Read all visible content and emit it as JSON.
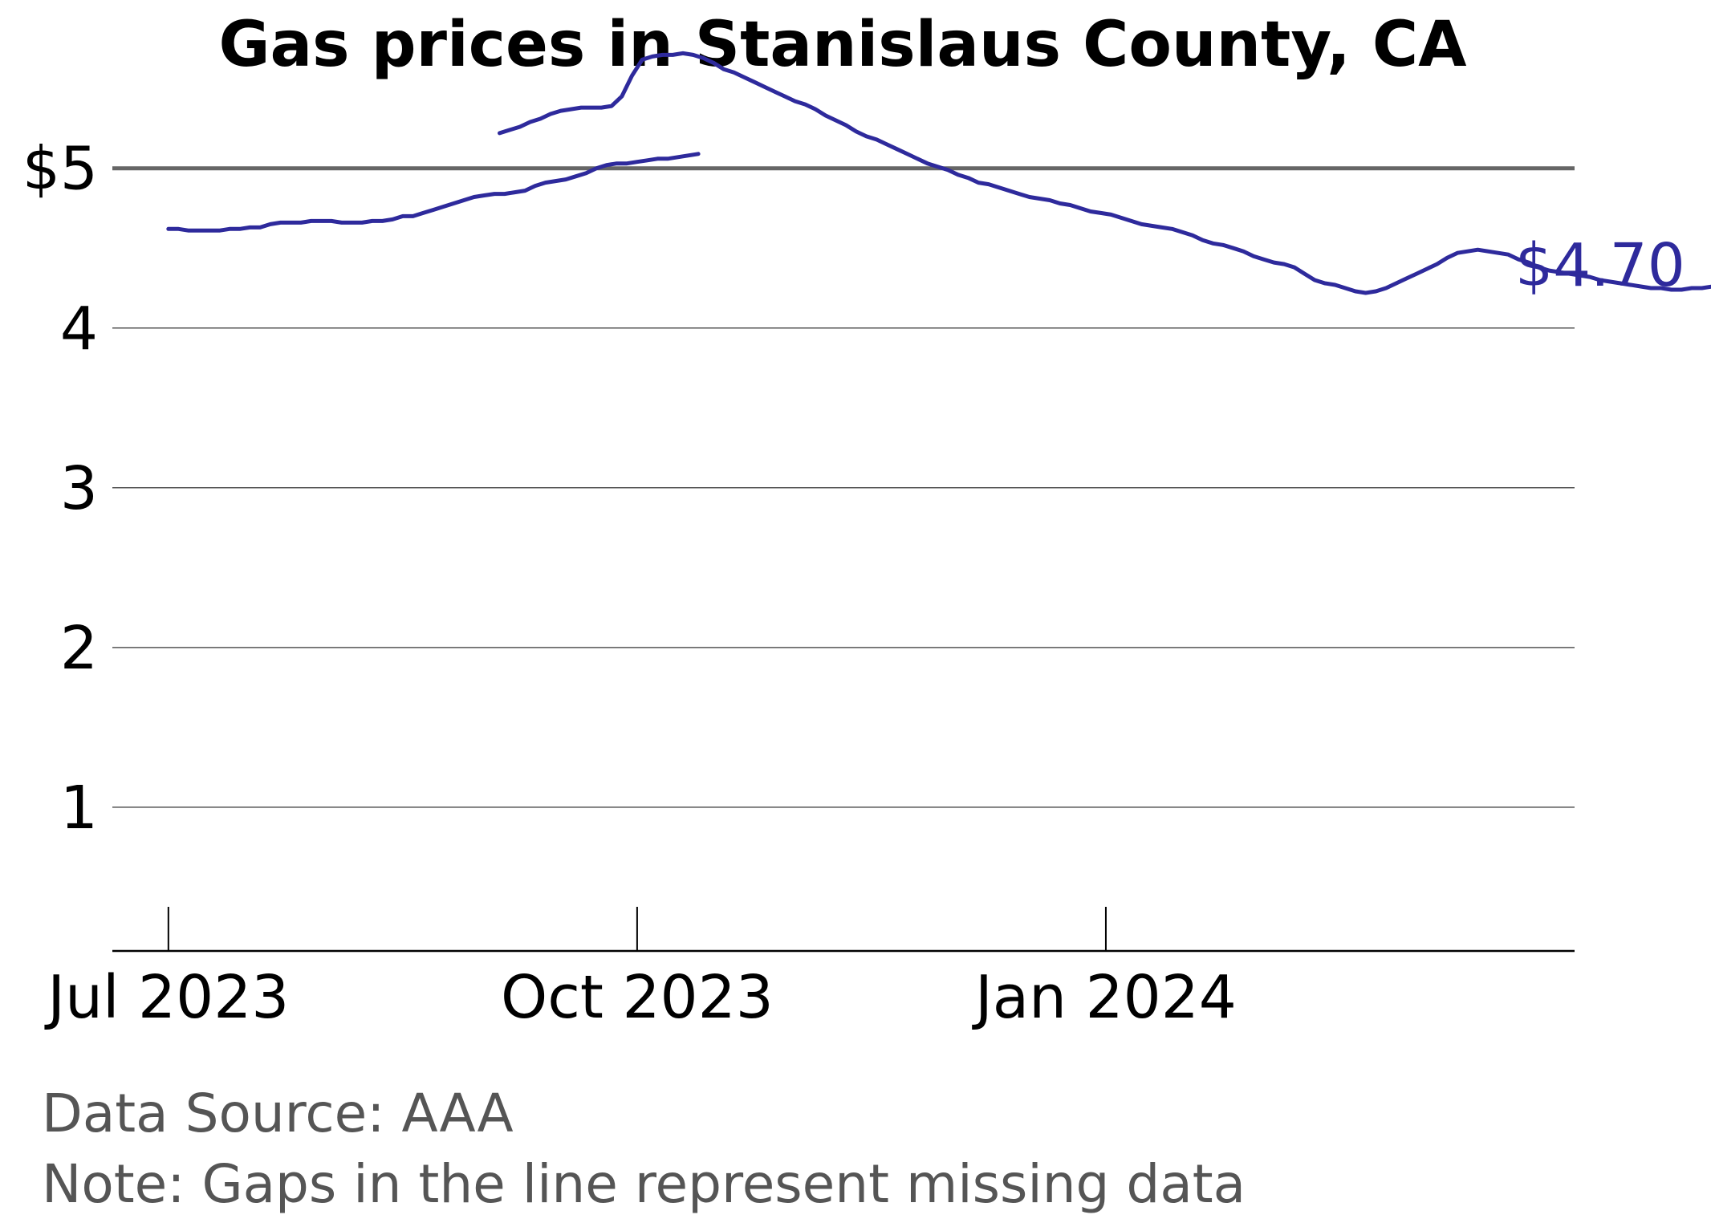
{
  "chart_data": {
    "type": "line",
    "title": "Gas prices in Stanislaus County, CA",
    "xlabel": "",
    "ylabel": "",
    "x_range": [
      "2023-06-20",
      "2024-04-02"
    ],
    "ylim": [
      0.1,
      5.3
    ],
    "y_ticks": [
      {
        "value": 1,
        "label": "1"
      },
      {
        "value": 2,
        "label": "2"
      },
      {
        "value": 3,
        "label": "3"
      },
      {
        "value": 4,
        "label": "4"
      },
      {
        "value": 5,
        "label": "$5"
      }
    ],
    "x_ticks": [
      {
        "date": "2023-07-01",
        "label": "Jul 2023"
      },
      {
        "date": "2023-10-01",
        "label": "Oct 2023"
      },
      {
        "date": "2024-01-01",
        "label": "Jan 2024"
      }
    ],
    "grid": "horizontal",
    "reference_line": {
      "value": 5
    },
    "end_label": "$4.70",
    "colors": {
      "line": "#2e2a9c",
      "reference": "#666666",
      "grid": "#555555",
      "axis": "#000000"
    },
    "series": [
      {
        "segments": [
          {
            "start": "2023-07-01",
            "values": [
              4.62,
              4.62,
              4.61,
              4.61,
              4.61,
              4.61,
              4.62,
              4.62,
              4.63,
              4.63,
              4.65,
              4.66,
              4.66,
              4.66,
              4.67,
              4.67,
              4.67,
              4.66,
              4.66,
              4.66,
              4.67,
              4.67,
              4.68,
              4.7,
              4.7,
              4.72,
              4.74,
              4.76,
              4.78,
              4.8,
              4.82,
              4.83,
              4.84,
              4.84,
              4.85,
              4.86,
              4.89,
              4.91,
              4.92,
              4.93,
              4.95,
              4.97,
              5.0,
              5.02,
              5.03,
              5.03,
              5.04,
              5.05,
              5.06,
              5.06,
              5.07,
              5.08,
              5.09
            ]
          },
          {
            "start": "2023-09-04",
            "values": [
              5.22,
              5.24,
              5.26,
              5.29,
              5.31,
              5.34,
              5.36,
              5.37,
              5.38,
              5.38,
              5.38,
              5.39,
              5.45,
              5.58,
              5.68,
              5.7,
              5.71,
              5.71,
              5.72,
              5.71,
              5.69,
              5.66,
              5.62,
              5.6,
              5.57,
              5.54,
              5.51,
              5.48,
              5.45,
              5.42,
              5.4,
              5.37,
              5.33,
              5.3,
              5.27,
              5.23,
              5.2,
              5.18,
              5.15,
              5.12,
              5.09,
              5.06,
              5.03,
              5.01,
              4.99,
              4.96,
              4.94,
              4.91,
              4.9,
              4.88,
              4.86,
              4.84,
              4.82,
              4.81,
              4.8,
              4.78,
              4.77,
              4.75,
              4.73,
              4.72,
              4.71,
              4.69,
              4.67,
              4.65,
              4.64,
              4.63,
              4.62,
              4.6,
              4.58,
              4.55,
              4.53,
              4.52,
              4.5,
              4.48,
              4.45,
              4.43,
              4.41,
              4.4,
              4.38,
              4.34,
              4.3,
              4.28,
              4.27,
              4.25,
              4.23,
              4.22,
              4.23,
              4.25,
              4.28,
              4.31,
              4.34,
              4.37,
              4.4,
              4.44,
              4.47,
              4.48,
              4.49,
              4.48,
              4.47,
              4.46,
              4.43,
              4.41,
              4.38,
              4.36,
              4.35,
              4.34,
              4.33,
              4.32,
              4.3,
              4.29,
              4.28,
              4.27,
              4.26,
              4.25,
              4.25,
              4.24,
              4.24,
              4.25,
              4.25,
              4.26,
              4.27,
              4.27,
              4.26,
              4.26,
              4.26,
              4.26,
              4.26,
              4.27,
              4.27,
              4.27,
              4.28,
              4.3,
              4.31,
              4.32,
              4.32,
              4.32,
              4.32,
              4.32,
              4.32,
              4.33,
              4.34,
              4.37,
              4.42,
              4.48,
              4.55,
              4.59,
              4.62,
              4.65,
              4.66,
              4.67,
              4.68,
              4.69,
              4.7
            ]
          }
        ]
      }
    ],
    "notes": [
      "Data Source: AAA",
      "Note: Gaps in the line represent missing data"
    ]
  }
}
